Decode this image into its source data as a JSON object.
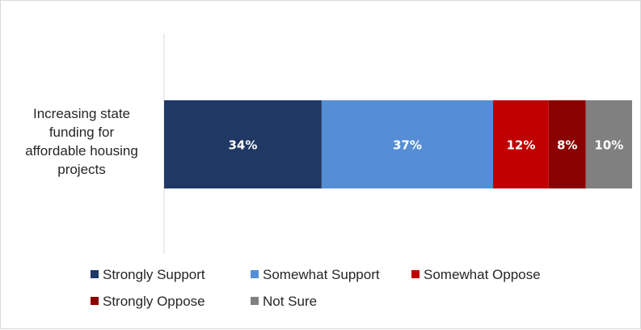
{
  "chart_data": {
    "type": "bar",
    "orientation": "horizontal",
    "stacked": true,
    "percent_scale": true,
    "categories": [
      "Increasing state funding for affordable housing projects"
    ],
    "category_lines": [
      "Increasing state",
      "funding for",
      "affordable housing",
      "projects"
    ],
    "series": [
      {
        "name": "Strongly Support",
        "values": [
          34
        ],
        "label": "34%",
        "color": "#1f3864"
      },
      {
        "name": "Somewhat Support",
        "values": [
          37
        ],
        "label": "37%",
        "color": "#558ed5"
      },
      {
        "name": "Somewhat Oppose",
        "values": [
          12
        ],
        "label": "12%",
        "color": "#c00000"
      },
      {
        "name": "Strongly Oppose",
        "values": [
          8
        ],
        "label": "8%",
        "color": "#8b0000"
      },
      {
        "name": "Not Sure",
        "values": [
          10
        ],
        "label": "10%",
        "color": "#808080"
      }
    ],
    "legend_position": "bottom",
    "grid": false,
    "title": "",
    "xlabel": "",
    "ylabel": ""
  }
}
